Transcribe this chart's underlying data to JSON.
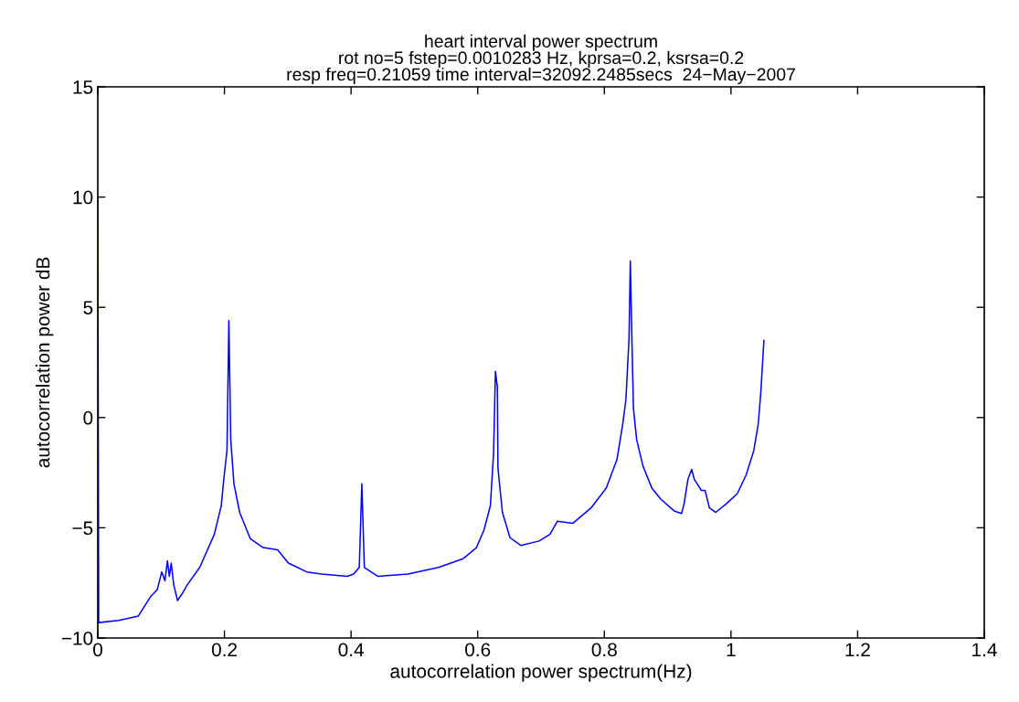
{
  "chart_data": {
    "type": "line",
    "title": "heart interval power spectrum\nrot no=5 fstep=0.0010283 Hz, kprsa=0.2, ksrsa=0.2\nresp freq=0.21059 time interval=32092.2485secs  24−May−2007",
    "xlabel": "autocorrelation power spectrum(Hz)",
    "ylabel": "autocorrelation power dB",
    "series": [
      {
        "color": "#0000ff",
        "x": [
          0,
          0.0014,
          0.033,
          0.064,
          0.084,
          0.094,
          0.101,
          0.106,
          0.11,
          0.113,
          0.116,
          0.12,
          0.126,
          0.133,
          0.141,
          0.161,
          0.184,
          0.195,
          0.199,
          0.204,
          0.207,
          0.21,
          0.212,
          0.215,
          0.224,
          0.241,
          0.261,
          0.284,
          0.301,
          0.33,
          0.353,
          0.394,
          0.404,
          0.413,
          0.417,
          0.421,
          0.442,
          0.49,
          0.538,
          0.577,
          0.598,
          0.61,
          0.62,
          0.625,
          0.628,
          0.631,
          0.632,
          0.639,
          0.651,
          0.668,
          0.697,
          0.714,
          0.726,
          0.75,
          0.779,
          0.803,
          0.82,
          0.829,
          0.834,
          0.839,
          0.841,
          0.844,
          0.846,
          0.851,
          0.861,
          0.875,
          0.889,
          0.911,
          0.922,
          0.926,
          0.932,
          0.938,
          0.942,
          0.953,
          0.959,
          0.966,
          0.976,
          0.993,
          1.01,
          1.024,
          1.036,
          1.043,
          1.047,
          1.052
        ],
        "values": [
          10.0,
          -9.3,
          -9.2,
          -9.0,
          -8.1,
          -7.8,
          -7.0,
          -7.4,
          -6.5,
          -7.2,
          -6.6,
          -7.6,
          -8.3,
          -8.0,
          -7.6,
          -6.8,
          -5.3,
          -4.0,
          -2.8,
          -1.5,
          4.4,
          -1.0,
          -1.8,
          -3.0,
          -4.3,
          -5.5,
          -5.9,
          -6.0,
          -6.6,
          -7.0,
          -7.1,
          -7.2,
          -7.1,
          -6.8,
          -3.0,
          -6.8,
          -7.2,
          -7.1,
          -6.8,
          -6.4,
          -5.9,
          -5.1,
          -4.0,
          -1.65,
          2.1,
          1.4,
          -2.3,
          -4.3,
          -5.45,
          -5.8,
          -5.6,
          -5.3,
          -4.7,
          -4.8,
          -4.1,
          -3.2,
          -1.9,
          -0.3,
          0.8,
          3.6,
          7.1,
          2.9,
          0.4,
          -1.0,
          -2.2,
          -3.2,
          -3.7,
          -4.25,
          -4.35,
          -3.9,
          -2.8,
          -2.35,
          -2.8,
          -3.3,
          -3.3,
          -4.1,
          -4.3,
          -3.9,
          -3.45,
          -2.6,
          -1.5,
          -0.3,
          1.1,
          3.5
        ]
      }
    ],
    "xlim": [
      0,
      1.4
    ],
    "xticks": [
      0,
      0.2,
      0.4,
      0.6,
      0.8,
      1,
      1.2,
      1.4
    ],
    "ylim": [
      -10,
      15
    ],
    "yticks": [
      {
        "value": -10,
        "label": "−10"
      },
      {
        "value": -5,
        "label": "−5"
      },
      0,
      5,
      10,
      15
    ],
    "grid": false,
    "legend": false,
    "marker": "none",
    "line_style": "solid"
  }
}
